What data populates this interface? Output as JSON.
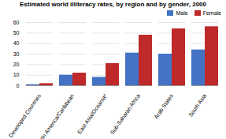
{
  "chart_data": {
    "type": "bar",
    "title": "Estimated world illiteracy rates, by region and by gender, 2000",
    "categories": [
      "Developed Countries",
      "Latin America/Caribbean",
      "East Asia/Oceania*",
      "Sub-Saharan Africa",
      "Arab States",
      "South Asia"
    ],
    "series": [
      {
        "name": "Male",
        "color": "#4472C4",
        "values": [
          1,
          10,
          8,
          31,
          30,
          34
        ]
      },
      {
        "name": "Female",
        "color": "#BE2A2A",
        "values": [
          2,
          12,
          21,
          48,
          54,
          56
        ]
      }
    ],
    "ylim": [
      0,
      60
    ],
    "yticks": [
      0,
      10,
      20,
      30,
      40,
      50,
      60
    ],
    "grid": true,
    "legend": "upper right"
  }
}
